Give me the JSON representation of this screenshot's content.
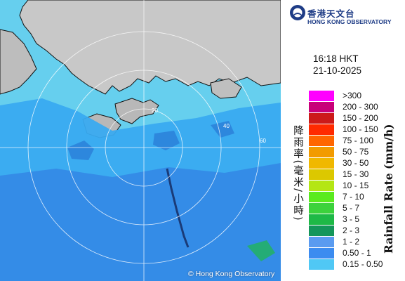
{
  "map": {
    "copyright": "© Hong Kong Observatory",
    "range_ring_labels": [
      "20",
      "40",
      "60"
    ],
    "colors": {
      "land": "#c9c9c9",
      "sea": "#66cfee",
      "rain_light": "#39aaf0",
      "rain_medium": "#3488e5",
      "coastline": "#111111",
      "ring": "#ffffff"
    }
  },
  "header": {
    "org_name_cn": "香港天文台",
    "org_name_en": "HONG KONG OBSERVATORY",
    "logo_icon": "hko-logo-icon"
  },
  "timestamp": {
    "time": "16:18 HKT",
    "date": "21-10-2025"
  },
  "legend": {
    "title_cn": "降雨率(毫米/小時)",
    "title_en": "Rainfall Rate (mm/h)",
    "items": [
      {
        "label": ">300",
        "color": "#ff00ff"
      },
      {
        "label": "200 - 300",
        "color": "#c8007a"
      },
      {
        "label": "150 - 200",
        "color": "#cc1a1a"
      },
      {
        "label": "100 - 150",
        "color": "#ff2a00"
      },
      {
        "label": "75 - 100",
        "color": "#ff6600"
      },
      {
        "label": "50 - 75",
        "color": "#f29b00"
      },
      {
        "label": "30 - 50",
        "color": "#f0b800"
      },
      {
        "label": "15 - 30",
        "color": "#dcc800"
      },
      {
        "label": "10 - 15",
        "color": "#b4e614"
      },
      {
        "label": "7 - 10",
        "color": "#5aeb1e"
      },
      {
        "label": "5 - 7",
        "color": "#3cd23c"
      },
      {
        "label": "3 - 5",
        "color": "#1eb946"
      },
      {
        "label": "2 - 3",
        "color": "#14965a"
      },
      {
        "label": "1 - 2",
        "color": "#5a9bf0"
      },
      {
        "label": "0.50 - 1",
        "color": "#3c8cf0"
      },
      {
        "label": "0.15 - 0.50",
        "color": "#50c8f5"
      }
    ]
  }
}
